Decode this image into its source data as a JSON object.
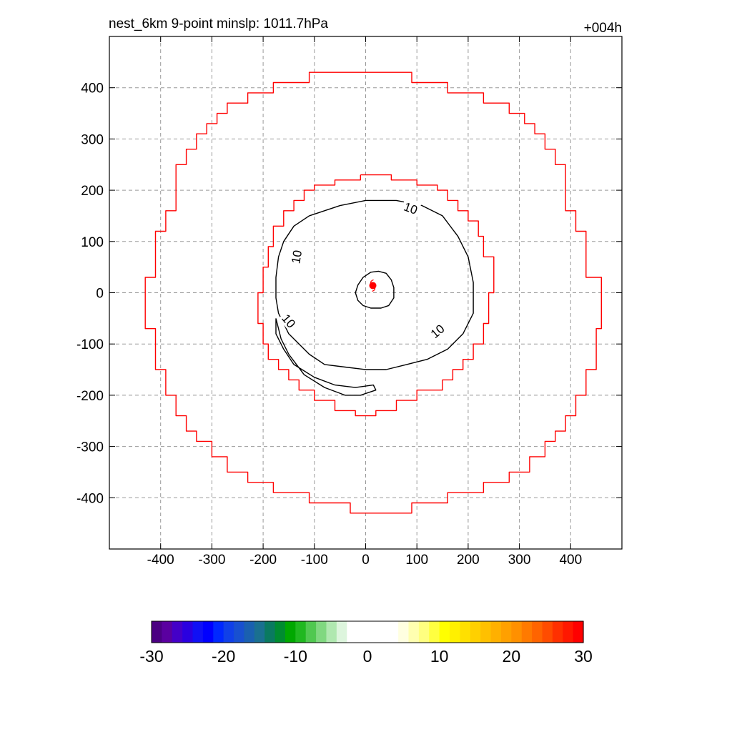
{
  "chart_data": {
    "type": "contour",
    "title_left": "nest_6km  9-point minslp: 1011.7hPa",
    "title_right": "+004h",
    "xlim": [
      -500,
      500
    ],
    "ylim": [
      -500,
      500
    ],
    "grid": true,
    "x_ticks": [
      -400,
      -300,
      -200,
      -100,
      0,
      100,
      200,
      300,
      400
    ],
    "y_ticks": [
      400,
      300,
      200,
      100,
      0,
      -100,
      -200,
      -300,
      -400
    ],
    "x_tick_labels": [
      "-400",
      "-300",
      "-200",
      "-100",
      "0",
      "100",
      "200",
      "300",
      "400"
    ],
    "y_tick_labels": [
      "400",
      "300",
      "200",
      "100",
      "0",
      "-100",
      "-200",
      "-300",
      "-400"
    ],
    "contour_level": 10,
    "contour_labels": [
      "10",
      "10",
      "10",
      "10"
    ],
    "storm_center": {
      "x": 14,
      "y": 14
    },
    "colorbar": {
      "min": -30,
      "max": 30,
      "tick_values": [
        -30,
        -20,
        -10,
        0,
        10,
        20,
        30
      ],
      "tick_labels": [
        "-30",
        "-20",
        "-10",
        "0",
        "10",
        "20",
        "30"
      ],
      "colors": [
        "#4b0082",
        "#5a00a0",
        "#4400c8",
        "#2a00e0",
        "#1010f5",
        "#0000ff",
        "#0028ff",
        "#1040e8",
        "#1850d0",
        "#1a60b0",
        "#1a7090",
        "#0a7a60",
        "#008c30",
        "#00a800",
        "#20b820",
        "#50c850",
        "#80d880",
        "#b0e8b0",
        "#ddf5dd",
        "#ffffff",
        "#ffffff",
        "#ffffff",
        "#ffffff",
        "#ffffff",
        "#ffffe0",
        "#ffffb0",
        "#ffff80",
        "#ffff40",
        "#ffff00",
        "#fff000",
        "#ffe000",
        "#ffd000",
        "#ffc000",
        "#ffb000",
        "#ffa000",
        "#ff9000",
        "#ff7a00",
        "#ff6400",
        "#ff4c00",
        "#ff3000",
        "#ff1800",
        "#ff0000"
      ]
    },
    "series": [
      {
        "color": "#ff0000",
        "points": [
          [
            -30,
            430
          ],
          [
            90,
            430
          ],
          [
            90,
            410
          ],
          [
            160,
            410
          ],
          [
            160,
            390
          ],
          [
            230,
            390
          ],
          [
            230,
            370
          ],
          [
            280,
            370
          ],
          [
            280,
            350
          ],
          [
            310,
            350
          ],
          [
            310,
            330
          ],
          [
            330,
            330
          ],
          [
            330,
            310
          ],
          [
            350,
            310
          ],
          [
            350,
            280
          ],
          [
            370,
            280
          ],
          [
            370,
            250
          ],
          [
            390,
            250
          ],
          [
            390,
            160
          ],
          [
            410,
            160
          ],
          [
            410,
            120
          ],
          [
            430,
            120
          ],
          [
            430,
            30
          ],
          [
            460,
            30
          ],
          [
            460,
            -70
          ],
          [
            450,
            -70
          ],
          [
            450,
            -150
          ],
          [
            430,
            -150
          ],
          [
            430,
            -200
          ],
          [
            410,
            -200
          ],
          [
            410,
            -240
          ],
          [
            390,
            -240
          ],
          [
            390,
            -270
          ],
          [
            370,
            -270
          ],
          [
            370,
            -290
          ],
          [
            350,
            -290
          ],
          [
            350,
            -320
          ],
          [
            320,
            -320
          ],
          [
            320,
            -350
          ],
          [
            280,
            -350
          ],
          [
            280,
            -370
          ],
          [
            230,
            -370
          ],
          [
            230,
            -390
          ],
          [
            160,
            -390
          ],
          [
            160,
            -410
          ],
          [
            90,
            -410
          ],
          [
            90,
            -430
          ],
          [
            -30,
            -430
          ],
          [
            -30,
            -410
          ],
          [
            -110,
            -410
          ],
          [
            -110,
            -390
          ],
          [
            -180,
            -390
          ],
          [
            -180,
            -370
          ],
          [
            -230,
            -370
          ],
          [
            -230,
            -350
          ],
          [
            -270,
            -350
          ],
          [
            -270,
            -320
          ],
          [
            -300,
            -320
          ],
          [
            -300,
            -290
          ],
          [
            -330,
            -290
          ],
          [
            -330,
            -270
          ],
          [
            -350,
            -270
          ],
          [
            -350,
            -240
          ],
          [
            -370,
            -240
          ],
          [
            -370,
            -200
          ],
          [
            -390,
            -200
          ],
          [
            -390,
            -150
          ],
          [
            -410,
            -150
          ],
          [
            -410,
            -70
          ],
          [
            -430,
            -70
          ],
          [
            -430,
            30
          ],
          [
            -410,
            30
          ],
          [
            -410,
            120
          ],
          [
            -390,
            120
          ],
          [
            -390,
            160
          ],
          [
            -370,
            160
          ],
          [
            -370,
            250
          ],
          [
            -350,
            250
          ],
          [
            -350,
            280
          ],
          [
            -330,
            280
          ],
          [
            -330,
            310
          ],
          [
            -310,
            310
          ],
          [
            -310,
            330
          ],
          [
            -290,
            330
          ],
          [
            -290,
            350
          ],
          [
            -270,
            350
          ],
          [
            -270,
            370
          ],
          [
            -230,
            370
          ],
          [
            -230,
            390
          ],
          [
            -180,
            390
          ],
          [
            -180,
            410
          ],
          [
            -110,
            410
          ],
          [
            -110,
            430
          ],
          [
            -30,
            430
          ]
        ]
      },
      {
        "color": "#ff0000",
        "points": [
          [
            -10,
            230
          ],
          [
            50,
            230
          ],
          [
            50,
            220
          ],
          [
            100,
            220
          ],
          [
            100,
            210
          ],
          [
            140,
            210
          ],
          [
            140,
            200
          ],
          [
            160,
            200
          ],
          [
            160,
            180
          ],
          [
            180,
            180
          ],
          [
            180,
            160
          ],
          [
            200,
            160
          ],
          [
            200,
            140
          ],
          [
            220,
            140
          ],
          [
            220,
            110
          ],
          [
            230,
            110
          ],
          [
            230,
            70
          ],
          [
            250,
            70
          ],
          [
            250,
            0
          ],
          [
            240,
            0
          ],
          [
            240,
            -60
          ],
          [
            230,
            -60
          ],
          [
            230,
            -100
          ],
          [
            210,
            -100
          ],
          [
            210,
            -130
          ],
          [
            190,
            -130
          ],
          [
            190,
            -150
          ],
          [
            170,
            -150
          ],
          [
            170,
            -170
          ],
          [
            150,
            -170
          ],
          [
            150,
            -190
          ],
          [
            100,
            -190
          ],
          [
            100,
            -210
          ],
          [
            60,
            -210
          ],
          [
            60,
            -230
          ],
          [
            20,
            -230
          ],
          [
            20,
            -240
          ],
          [
            -20,
            -240
          ],
          [
            -20,
            -230
          ],
          [
            -60,
            -230
          ],
          [
            -60,
            -210
          ],
          [
            -100,
            -210
          ],
          [
            -100,
            -190
          ],
          [
            -130,
            -190
          ],
          [
            -130,
            -170
          ],
          [
            -150,
            -170
          ],
          [
            -150,
            -150
          ],
          [
            -170,
            -150
          ],
          [
            -170,
            -130
          ],
          [
            -190,
            -130
          ],
          [
            -190,
            -100
          ],
          [
            -200,
            -100
          ],
          [
            -200,
            -60
          ],
          [
            -210,
            -60
          ],
          [
            -210,
            0
          ],
          [
            -200,
            0
          ],
          [
            -200,
            50
          ],
          [
            -190,
            50
          ],
          [
            -190,
            90
          ],
          [
            -180,
            90
          ],
          [
            -180,
            130
          ],
          [
            -160,
            130
          ],
          [
            -160,
            160
          ],
          [
            -140,
            160
          ],
          [
            -140,
            180
          ],
          [
            -120,
            180
          ],
          [
            -120,
            200
          ],
          [
            -100,
            200
          ],
          [
            -100,
            210
          ],
          [
            -60,
            210
          ],
          [
            -60,
            220
          ],
          [
            -10,
            220
          ],
          [
            -10,
            230
          ]
        ]
      },
      {
        "color": "#000000",
        "points": [
          [
            -110,
            150
          ],
          [
            -50,
            170
          ],
          [
            0,
            180
          ],
          [
            60,
            180
          ],
          [
            110,
            170
          ],
          [
            150,
            150
          ],
          [
            180,
            110
          ],
          [
            200,
            70
          ],
          [
            210,
            20
          ],
          [
            210,
            -40
          ],
          [
            190,
            -80
          ],
          [
            160,
            -110
          ],
          [
            120,
            -130
          ],
          [
            80,
            -140
          ],
          [
            40,
            -150
          ],
          [
            0,
            -150
          ],
          [
            -40,
            -145
          ],
          [
            -80,
            -140
          ],
          [
            -110,
            -120
          ],
          [
            -130,
            -100
          ],
          [
            -150,
            -80
          ],
          [
            -160,
            -60
          ],
          [
            -170,
            -40
          ],
          [
            -175,
            -10
          ],
          [
            -175,
            30
          ],
          [
            -170,
            70
          ],
          [
            -160,
            100
          ],
          [
            -140,
            130
          ],
          [
            -110,
            150
          ]
        ]
      },
      {
        "color": "#000000",
        "points": [
          [
            -5,
            30
          ],
          [
            10,
            40
          ],
          [
            25,
            42
          ],
          [
            40,
            38
          ],
          [
            50,
            25
          ],
          [
            55,
            10
          ],
          [
            55,
            -10
          ],
          [
            45,
            -25
          ],
          [
            30,
            -30
          ],
          [
            10,
            -30
          ],
          [
            -5,
            -25
          ],
          [
            -15,
            -15
          ],
          [
            -20,
            0
          ],
          [
            -15,
            15
          ],
          [
            -5,
            30
          ]
        ]
      },
      {
        "color": "#000000",
        "points": [
          [
            -175,
            -50
          ],
          [
            -165,
            -90
          ],
          [
            -150,
            -120
          ],
          [
            -120,
            -160
          ],
          [
            -80,
            -185
          ],
          [
            -40,
            -200
          ],
          [
            -10,
            -200
          ],
          [
            20,
            -190
          ],
          [
            15,
            -180
          ],
          [
            -20,
            -185
          ],
          [
            -60,
            -180
          ],
          [
            -100,
            -165
          ],
          [
            -140,
            -140
          ],
          [
            -160,
            -110
          ],
          [
            -175,
            -80
          ],
          [
            -175,
            -50
          ]
        ]
      }
    ]
  }
}
